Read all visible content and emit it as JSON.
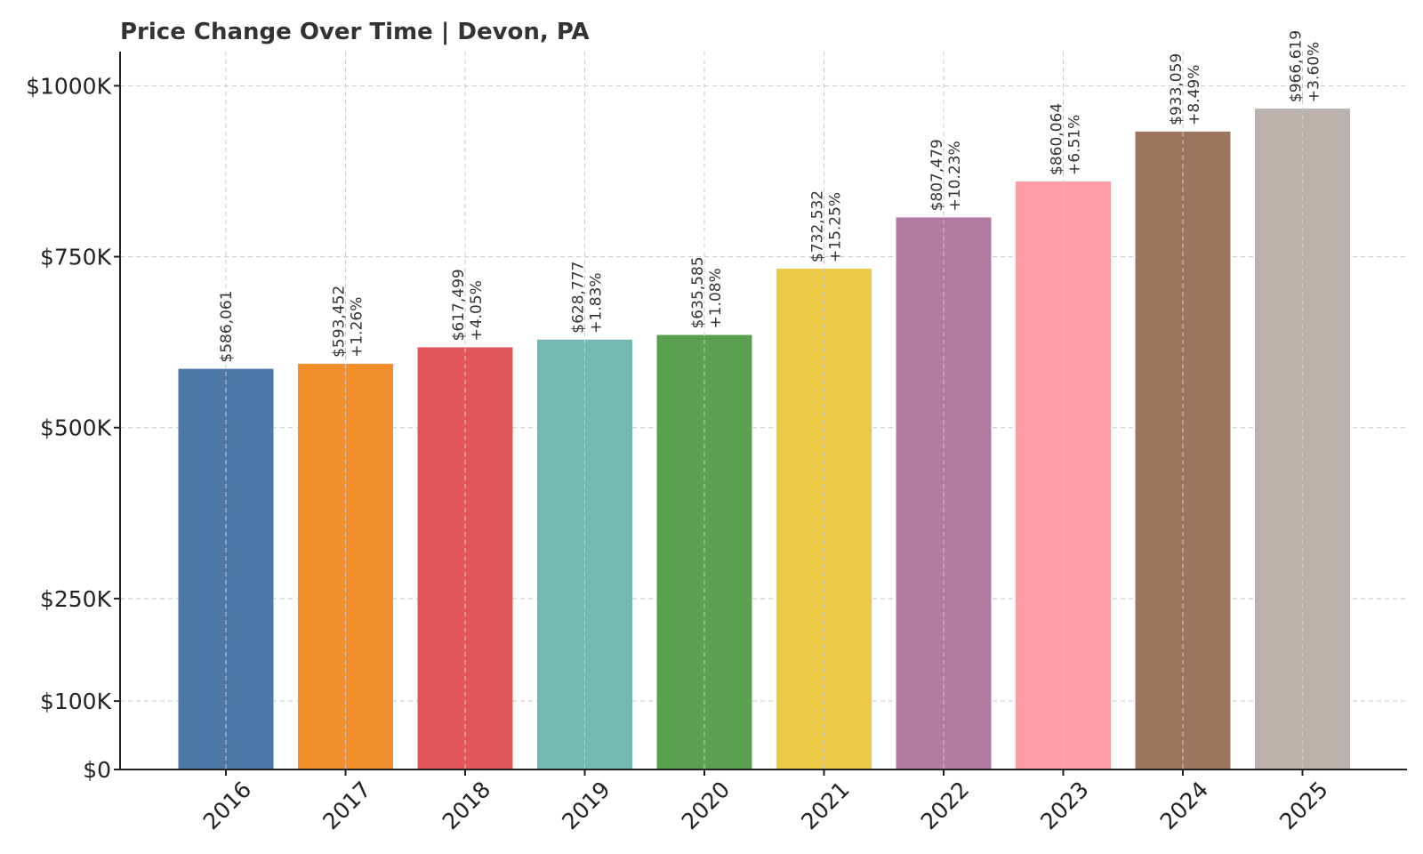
{
  "chart_data": {
    "type": "bar",
    "title": "Price Change Over Time | Devon, PA",
    "xlabel": "",
    "ylabel": "",
    "categories": [
      "2016",
      "2017",
      "2018",
      "2019",
      "2020",
      "2021",
      "2022",
      "2023",
      "2024",
      "2025"
    ],
    "values": [
      586061,
      593452,
      617499,
      628777,
      635585,
      732532,
      807479,
      860064,
      933059,
      966619
    ],
    "value_labels": [
      "$586,061",
      "$593,452",
      "$617,499",
      "$628,777",
      "$635,585",
      "$732,532",
      "$807,479",
      "$860,064",
      "$933,059",
      "$966,619"
    ],
    "pct_labels": [
      "",
      "+1.26%",
      "+4.05%",
      "+1.83%",
      "+1.08%",
      "+15.25%",
      "+10.23%",
      "+6.51%",
      "+8.49%",
      "+3.60%"
    ],
    "colors": [
      "#4e79a7",
      "#f28e2b",
      "#e15759",
      "#76b7b2",
      "#59a14f",
      "#edc948",
      "#b07aa1",
      "#ff9da7",
      "#9c755f",
      "#bab0ac"
    ],
    "ylim": [
      0,
      1050000
    ],
    "yticks": [
      0,
      100000,
      250000,
      500000,
      750000,
      1000000
    ],
    "ytick_labels": [
      "$0",
      "$100K",
      "$250K",
      "$500K",
      "$750K",
      "$1000K"
    ],
    "grid": true,
    "legend": "none"
  }
}
